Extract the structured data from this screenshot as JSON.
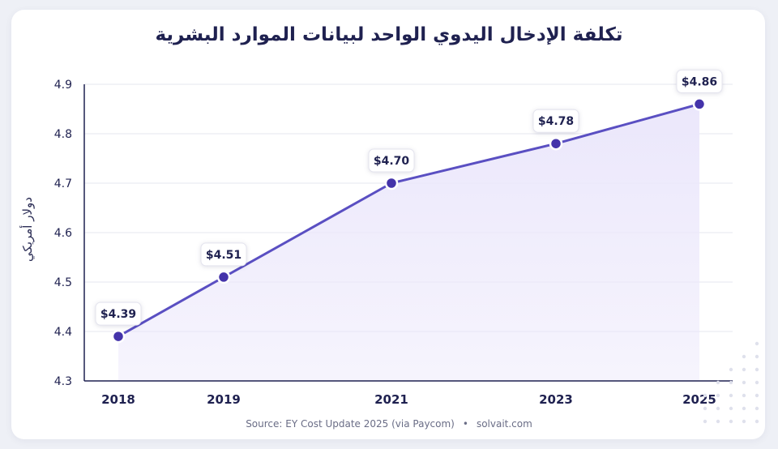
{
  "title": "تكلفة الإدخال اليدوي الواحد لبيانات الموارد البشرية",
  "source": "Source: EY Cost Update 2025 (via Paycom)",
  "site": "solvait.com",
  "separator": "•",
  "colors": {
    "line": "#5a4fc2",
    "point": "#4433aa",
    "fill": "#ebe7fb",
    "axis": "#1f2150",
    "grid": "#e6e7ef"
  },
  "chart_data": {
    "type": "line",
    "title": "تكلفة الإدخال اليدوي الواحد لبيانات الموارد البشرية",
    "ylabel": "دولار أمريكي",
    "xlabel": "",
    "x": [
      2018,
      2019,
      2021,
      2023,
      2025
    ],
    "x_tick_labels": [
      "2018",
      "2019",
      "2021",
      "2023",
      "2025"
    ],
    "ylim": [
      4.3,
      4.9
    ],
    "y_ticks": [
      4.3,
      4.4,
      4.5,
      4.6,
      4.7,
      4.8,
      4.9
    ],
    "y_tick_labels": [
      "4.3",
      "4.4",
      "4.5",
      "4.6",
      "4.7",
      "4.8",
      "4.9"
    ],
    "series": [
      {
        "values": [
          4.39,
          4.51,
          4.7,
          4.78,
          4.86
        ],
        "labels": [
          "$4.39",
          "$4.51",
          "$4.70",
          "$4.78",
          "$4.86"
        ]
      }
    ],
    "grid": "horizontal",
    "area_fill": true
  }
}
